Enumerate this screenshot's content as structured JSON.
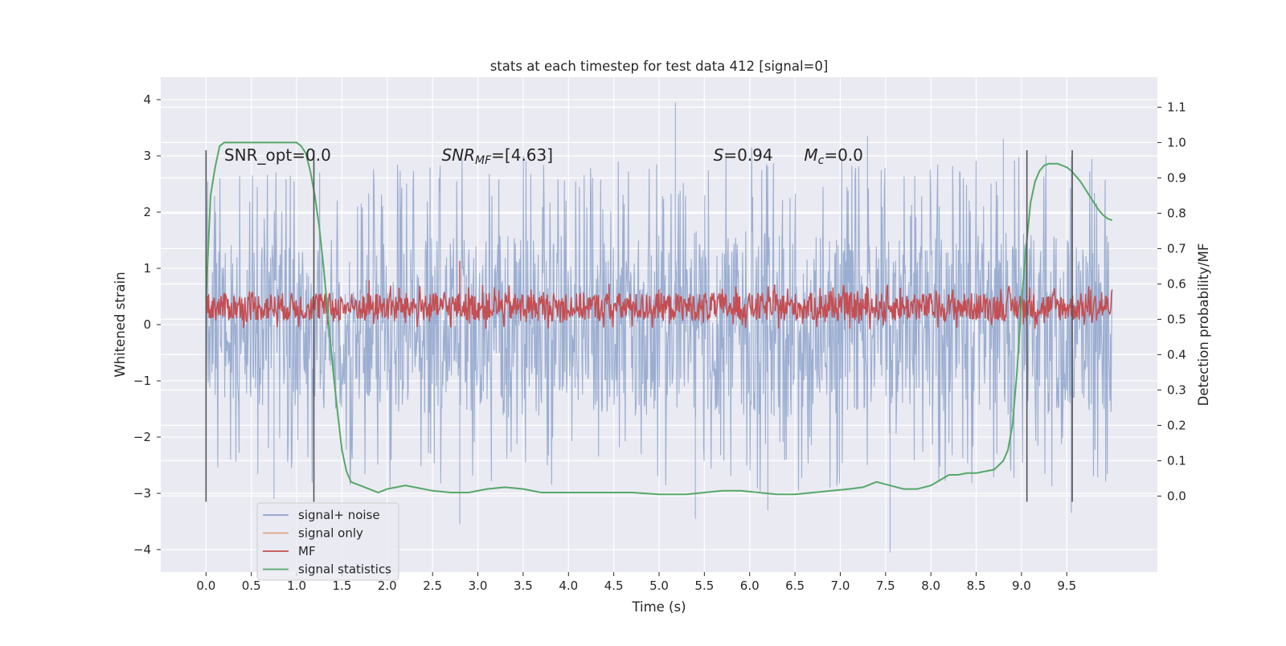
{
  "chart_data": {
    "type": "line",
    "title": "stats at each timestep for test data 412 [signal=0]",
    "xlabel": "Time (s)",
    "ylabel": "Whitened strain",
    "y2label": "Detection probability/MF",
    "xlim": [
      -0.5,
      10.5
    ],
    "ylim": [
      -4.4,
      4.4
    ],
    "y2lim": [
      -0.215,
      1.185
    ],
    "x_ticks": [
      "0.0",
      "0.5",
      "1.0",
      "1.5",
      "2.0",
      "2.5",
      "3.0",
      "3.5",
      "4.0",
      "4.5",
      "5.0",
      "5.5",
      "6.0",
      "6.5",
      "7.0",
      "7.5",
      "8.0",
      "8.5",
      "9.0",
      "9.5"
    ],
    "y_ticks": [
      "4",
      "3",
      "2",
      "1",
      "0",
      "−1",
      "−2",
      "−3",
      "−4"
    ],
    "y2_ticks": [
      "1.1",
      "1.0",
      "0.9",
      "0.8",
      "0.7",
      "0.6",
      "0.5",
      "0.4",
      "0.3",
      "0.2",
      "0.1",
      "0.0"
    ],
    "grid": true,
    "legend_position": "lower-left",
    "series": [
      {
        "name": "signal+ noise",
        "axis": "left",
        "color": "#4c72b0",
        "style": "noise",
        "x_range": [
          0.0,
          10.0
        ],
        "envelope_top": [
          1.9,
          2.0,
          2.1,
          2.2,
          2.1,
          2.3,
          2.2,
          2.0,
          2.2,
          2.1
        ],
        "envelope_bottom": [
          -1.9,
          -2.0,
          -2.1,
          -2.1,
          -2.0,
          -2.2,
          -2.1,
          -2.0,
          -2.1,
          -2.0
        ],
        "spikes": [
          [
            5.18,
            3.95
          ],
          [
            2.8,
            -3.55
          ],
          [
            5.4,
            -3.45
          ],
          [
            7.55,
            -4.05
          ],
          [
            9.55,
            -3.35
          ],
          [
            7.3,
            3.35
          ],
          [
            8.8,
            3.3
          ],
          [
            0.75,
            -3.1
          ],
          [
            6.2,
            -3.3
          ]
        ]
      },
      {
        "name": "signal only",
        "axis": "left",
        "color": "#dd8452",
        "values": []
      },
      {
        "name": "MF",
        "axis": "right",
        "color": "#c44e52",
        "style": "noise",
        "x_range": [
          0.0,
          10.0
        ],
        "mean": 0.535,
        "amplitude": 0.04,
        "spikes": [
          [
            2.8,
            0.665
          ],
          [
            1.8,
            0.61
          ],
          [
            4.45,
            0.6
          ]
        ]
      },
      {
        "name": "signal statistics",
        "axis": "right",
        "color": "#55a868",
        "x": [
          0.0,
          0.05,
          0.1,
          0.15,
          0.2,
          0.3,
          0.5,
          0.7,
          0.9,
          1.0,
          1.05,
          1.1,
          1.15,
          1.2,
          1.25,
          1.3,
          1.35,
          1.4,
          1.45,
          1.5,
          1.55,
          1.6,
          1.7,
          1.8,
          1.9,
          2.0,
          2.1,
          2.2,
          2.3,
          2.5,
          2.7,
          2.9,
          3.1,
          3.3,
          3.5,
          3.7,
          3.9,
          4.1,
          4.4,
          4.7,
          5.0,
          5.3,
          5.5,
          5.7,
          5.9,
          6.1,
          6.3,
          6.5,
          6.7,
          6.9,
          7.1,
          7.25,
          7.4,
          7.55,
          7.7,
          7.85,
          8.0,
          8.1,
          8.2,
          8.3,
          8.4,
          8.5,
          8.6,
          8.7,
          8.8,
          8.85,
          8.9,
          8.95,
          9.0,
          9.05,
          9.1,
          9.15,
          9.2,
          9.25,
          9.3,
          9.35,
          9.4,
          9.45,
          9.5,
          9.55,
          9.6,
          9.65,
          9.7,
          9.75,
          9.8,
          9.85,
          9.9,
          9.95,
          10.0
        ],
        "values": [
          0.56,
          0.85,
          0.93,
          0.99,
          1.0,
          1.0,
          1.0,
          1.0,
          1.0,
          1.0,
          0.99,
          0.97,
          0.92,
          0.85,
          0.76,
          0.64,
          0.5,
          0.36,
          0.24,
          0.13,
          0.07,
          0.04,
          0.03,
          0.02,
          0.01,
          0.02,
          0.025,
          0.03,
          0.025,
          0.015,
          0.01,
          0.01,
          0.02,
          0.025,
          0.02,
          0.01,
          0.01,
          0.01,
          0.01,
          0.01,
          0.005,
          0.005,
          0.01,
          0.015,
          0.015,
          0.01,
          0.005,
          0.005,
          0.01,
          0.015,
          0.02,
          0.025,
          0.04,
          0.03,
          0.02,
          0.02,
          0.03,
          0.045,
          0.06,
          0.06,
          0.065,
          0.065,
          0.07,
          0.075,
          0.1,
          0.13,
          0.2,
          0.35,
          0.55,
          0.7,
          0.83,
          0.89,
          0.92,
          0.935,
          0.94,
          0.94,
          0.94,
          0.935,
          0.93,
          0.92,
          0.905,
          0.89,
          0.87,
          0.85,
          0.83,
          0.81,
          0.795,
          0.785,
          0.78
        ]
      }
    ],
    "vertical_lines": [
      0.0,
      1.19,
      9.06,
      9.56
    ],
    "vertical_line_range": [
      -3.15,
      3.1
    ],
    "annotations": [
      {
        "text": "SNR_opt=0.0",
        "x": 0.2,
        "y": 3.0,
        "italic": false
      },
      {
        "text": "SNR_MF=[4.63]",
        "x": 2.6,
        "y": 3.0,
        "italic": true
      },
      {
        "text": "S=0.94",
        "x": 5.6,
        "y": 3.0,
        "italic": true
      },
      {
        "text": "M_c=0.0",
        "x": 6.6,
        "y": 3.0,
        "italic": true
      }
    ]
  }
}
